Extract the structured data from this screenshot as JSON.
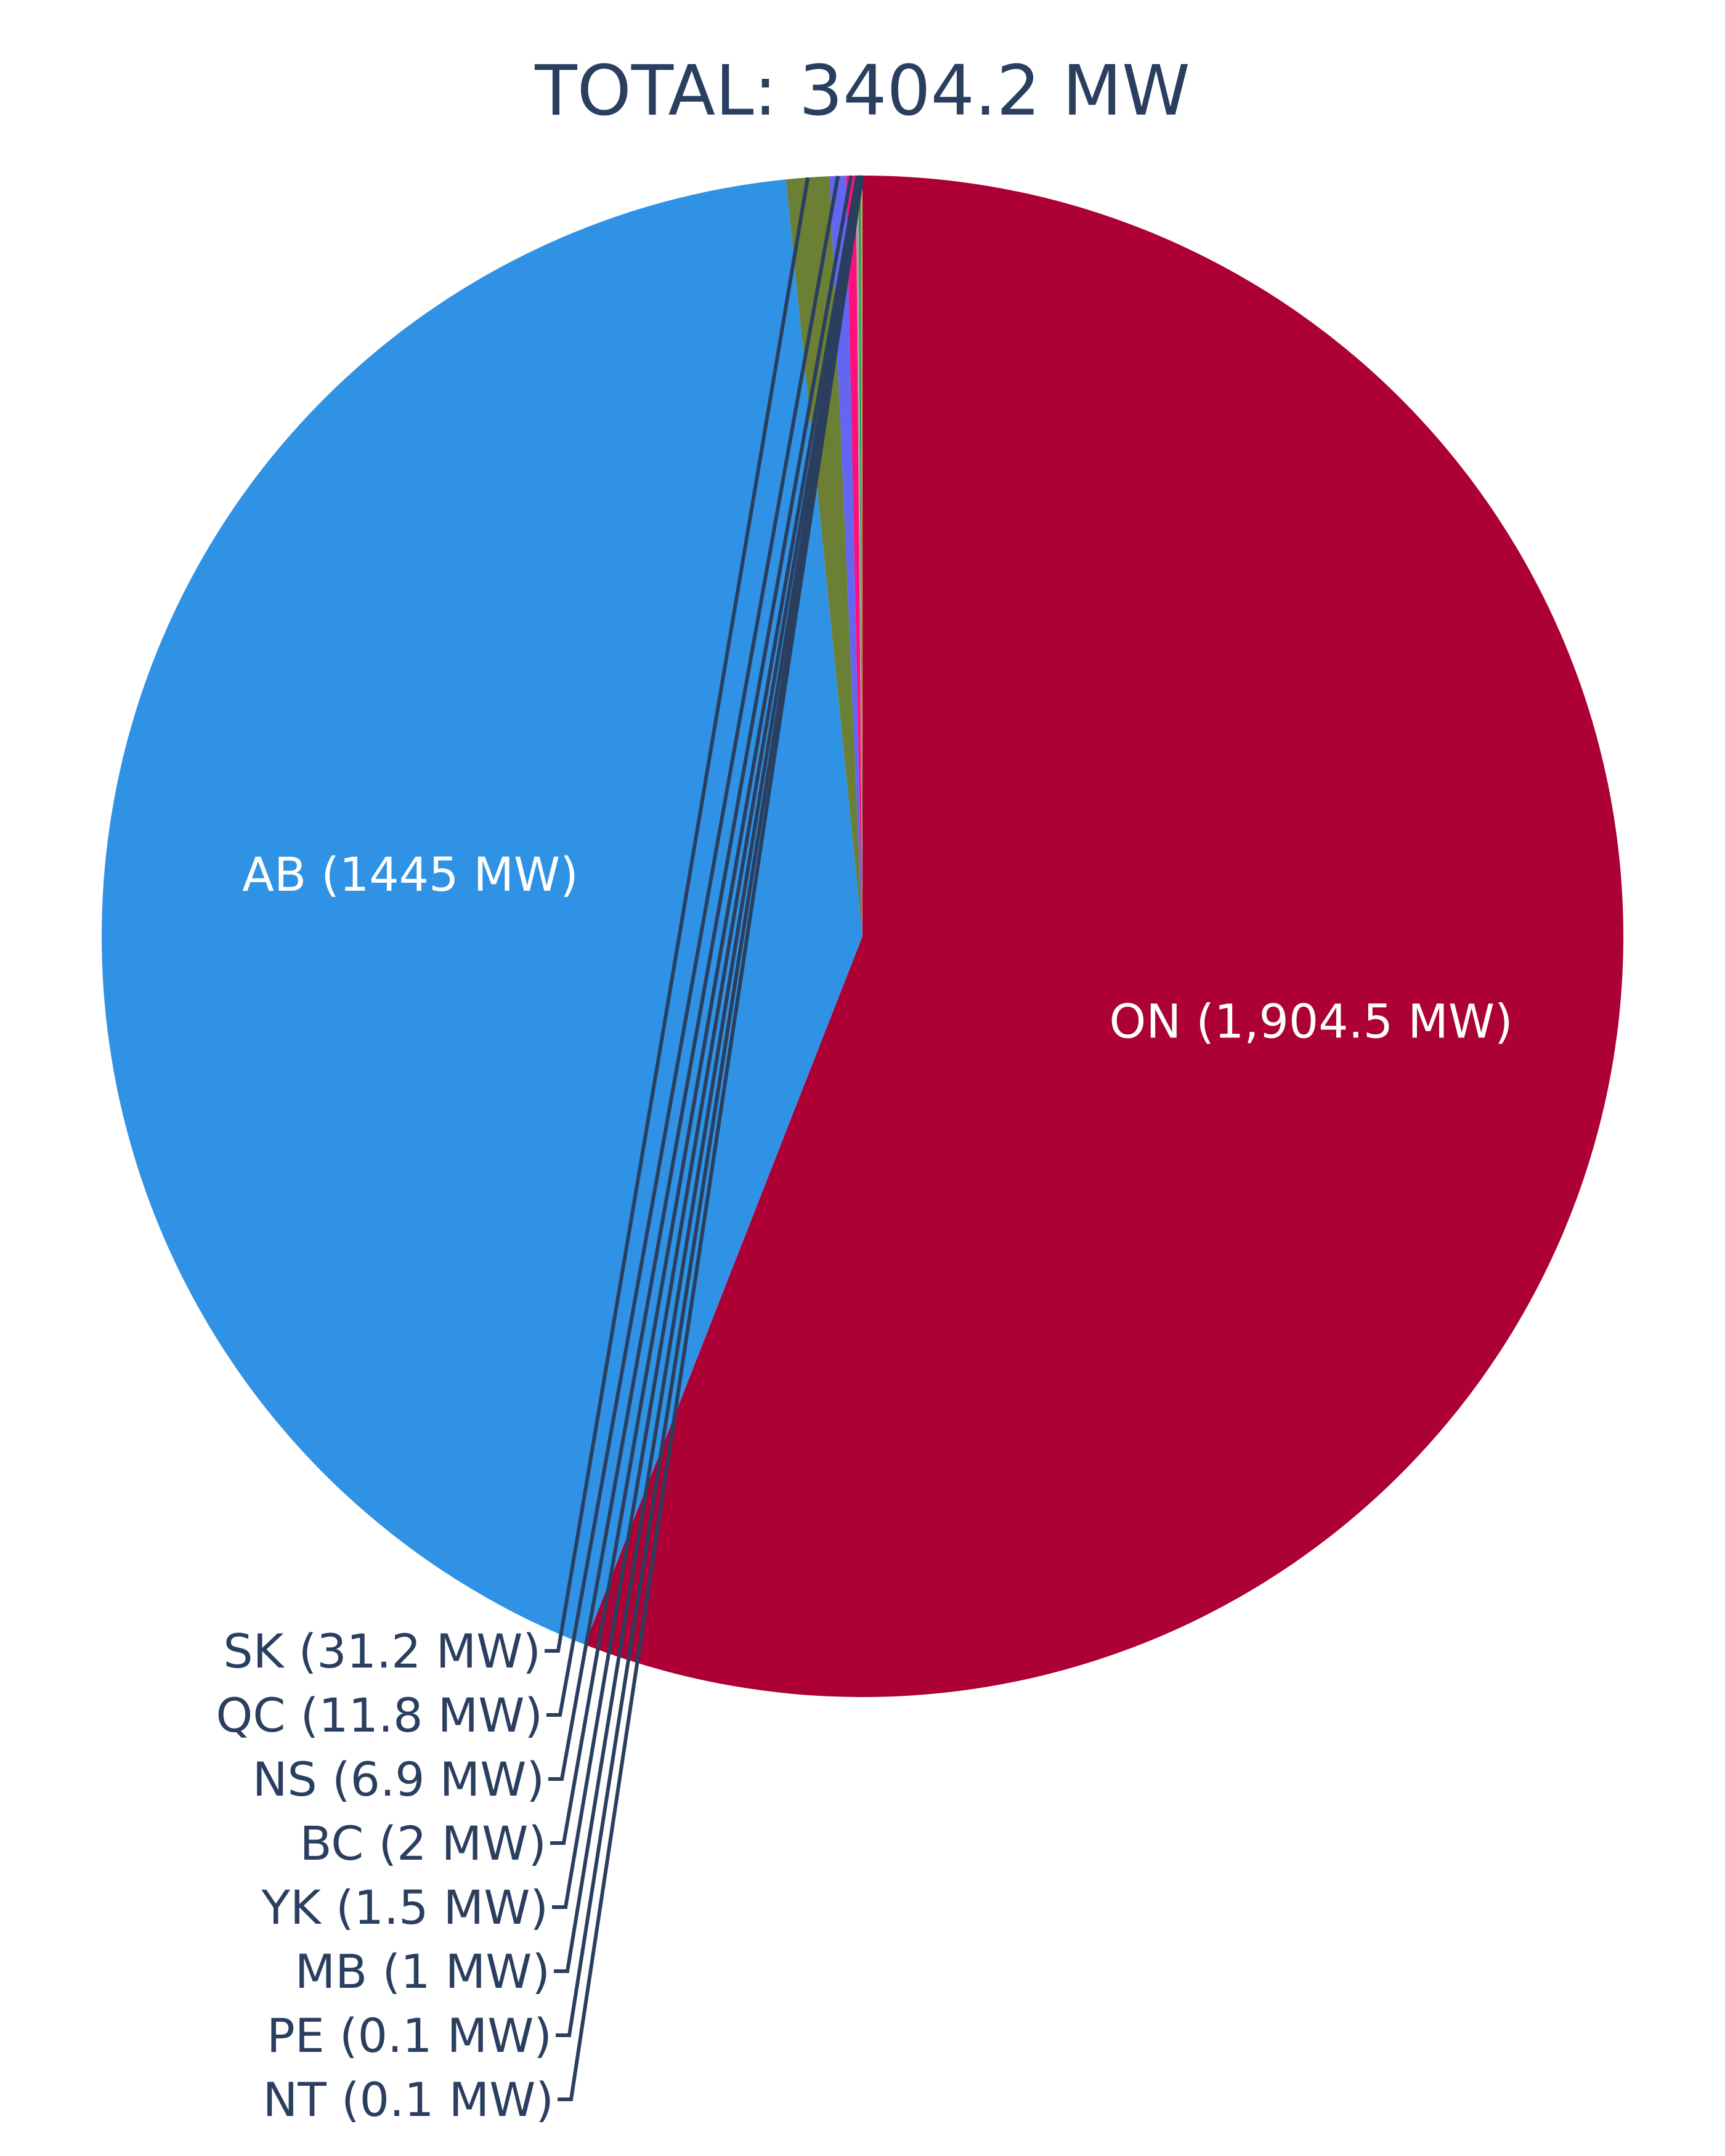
{
  "chart_data": {
    "type": "pie",
    "title": "TOTAL: 3404.2 MW",
    "direction": "clockwise",
    "start": "top",
    "slices": [
      {
        "key": "on",
        "label": "ON (1,904.5 MW)",
        "value": 1904.5,
        "color": "#ad0035",
        "label_position": "inside"
      },
      {
        "key": "ab",
        "label": "AB (1445 MW)",
        "value": 1445,
        "color": "#3092e4",
        "label_position": "inside"
      },
      {
        "key": "sk",
        "label": "SK (31.2 MW)",
        "value": 31.2,
        "color": "#6b7f35",
        "label_position": "outside"
      },
      {
        "key": "qc",
        "label": "QC (11.8 MW)",
        "value": 11.8,
        "color": "#6366f1",
        "label_position": "outside"
      },
      {
        "key": "ns",
        "label": "NS (6.9 MW)",
        "value": 6.9,
        "color": "#ff0f7b",
        "label_position": "outside"
      },
      {
        "key": "bc",
        "label": "BC (2 MW)",
        "value": 2,
        "color": "#a3a3a3",
        "label_position": "outside"
      },
      {
        "key": "yk",
        "label": "YK (1.5 MW)",
        "value": 1.5,
        "color": "#16a34a",
        "label_position": "outside"
      },
      {
        "key": "mb",
        "label": "MB (1 MW)",
        "value": 1,
        "color": "#f59e0b",
        "label_position": "outside"
      },
      {
        "key": "pe",
        "label": "PE (0.1 MW)",
        "value": 0.1,
        "color": "#06b6d4",
        "label_position": "outside"
      },
      {
        "key": "nt",
        "label": "NT (0.1 MW)",
        "value": 0.1,
        "color": "#8b5cf6",
        "label_position": "outside"
      }
    ],
    "legend": "none"
  }
}
